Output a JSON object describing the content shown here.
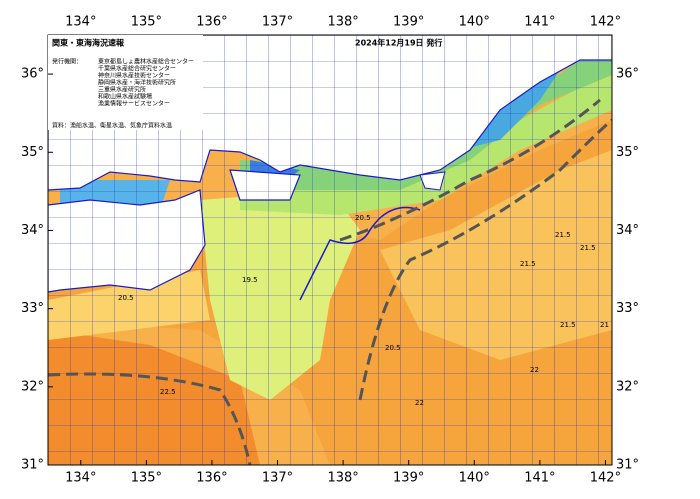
{
  "header": {
    "title": "関東・東海海況速報",
    "date": "2024年12月19日 発行"
  },
  "agencies": {
    "label": "発行機関：",
    "names": [
      "東京都島しょ農林水産総合センター",
      "千葉県水産総合研究センター",
      "神奈川県水産技術センター",
      "静岡県水産・海洋技術研究所",
      "三重県水産研究所",
      "和歌山県水産試験場",
      "漁業情報サービスセンター"
    ]
  },
  "source": "資料：漁船水温、衛星水温、気象庁資料水温",
  "map": {
    "lonlim": [
      133.5,
      142.1
    ],
    "latlim": [
      31,
      36.5
    ],
    "lon_ticks": [
      {
        "value": 134,
        "label": "134°"
      },
      {
        "value": 135,
        "label": "135°"
      },
      {
        "value": 136,
        "label": "136°"
      },
      {
        "value": 137,
        "label": "137°"
      },
      {
        "value": 138,
        "label": "138°"
      },
      {
        "value": 139,
        "label": "139°"
      },
      {
        "value": 140,
        "label": "140°"
      },
      {
        "value": 141,
        "label": "141°"
      },
      {
        "value": 142,
        "label": "142°"
      }
    ],
    "lat_ticks": [
      {
        "value": 31,
        "label": "31°"
      },
      {
        "value": 32,
        "label": "32°"
      },
      {
        "value": 33,
        "label": "33°"
      },
      {
        "value": 34,
        "label": "34°"
      },
      {
        "value": 35,
        "label": "35°"
      },
      {
        "value": 36,
        "label": "36°"
      }
    ],
    "isotherm_labels": [
      "20.5",
      "19.5",
      "20.5",
      "21.5",
      "22.5",
      "22",
      "21.5",
      "21.5",
      "21",
      "20.5",
      "21.5",
      "22"
    ]
  }
}
